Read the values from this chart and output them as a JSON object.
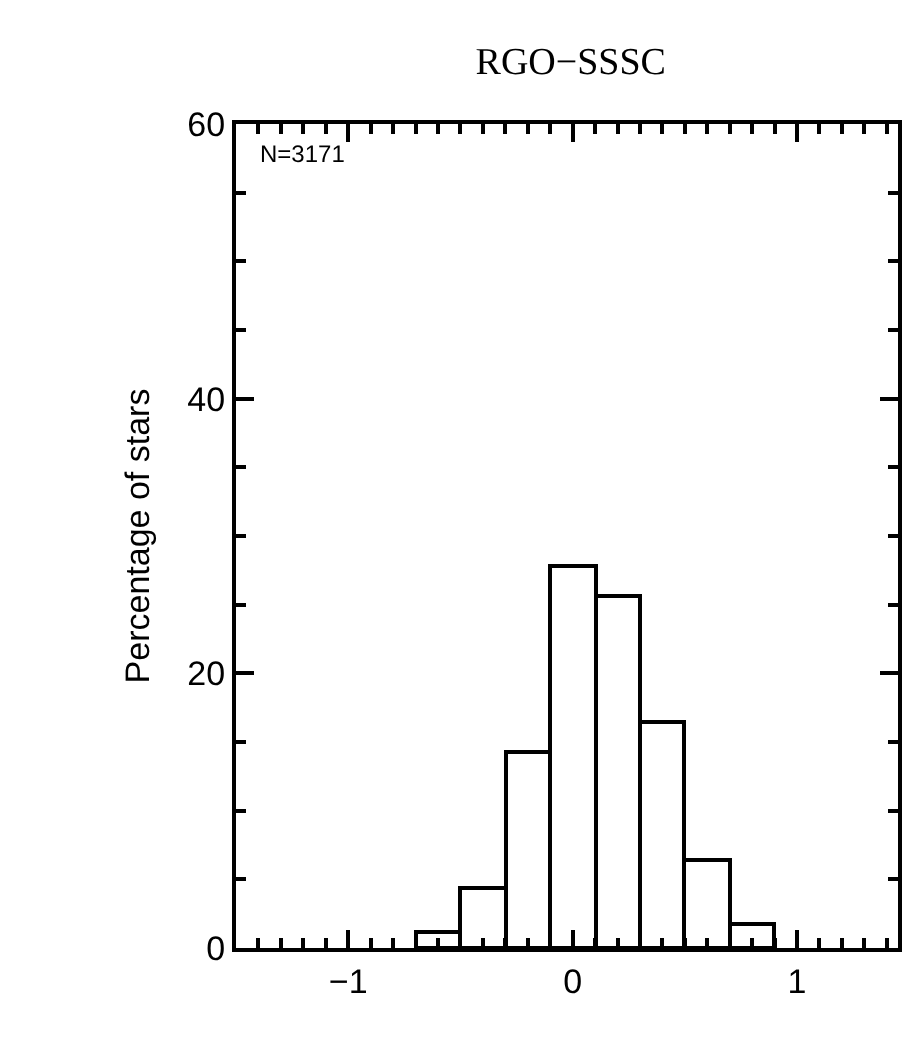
{
  "chart_data": {
    "type": "histogram",
    "title": "RGO−SSSC",
    "ylabel": "Percentage of stars",
    "bins": [
      -0.7,
      -0.5,
      -0.3,
      -0.1,
      0.1,
      0.3,
      0.5,
      0.7,
      0.9
    ],
    "values": [
      1.2,
      4.3,
      14.2,
      27.8,
      25.7,
      16.5,
      6.4,
      1.7
    ],
    "color": "#ffffff",
    "xlim": [
      -1.5,
      1.45
    ],
    "xticks": [
      -1,
      0,
      1
    ],
    "ylim": [
      0,
      60
    ],
    "yticks": [
      0,
      20,
      40,
      60
    ],
    "annotations": [
      "N=3171"
    ]
  }
}
